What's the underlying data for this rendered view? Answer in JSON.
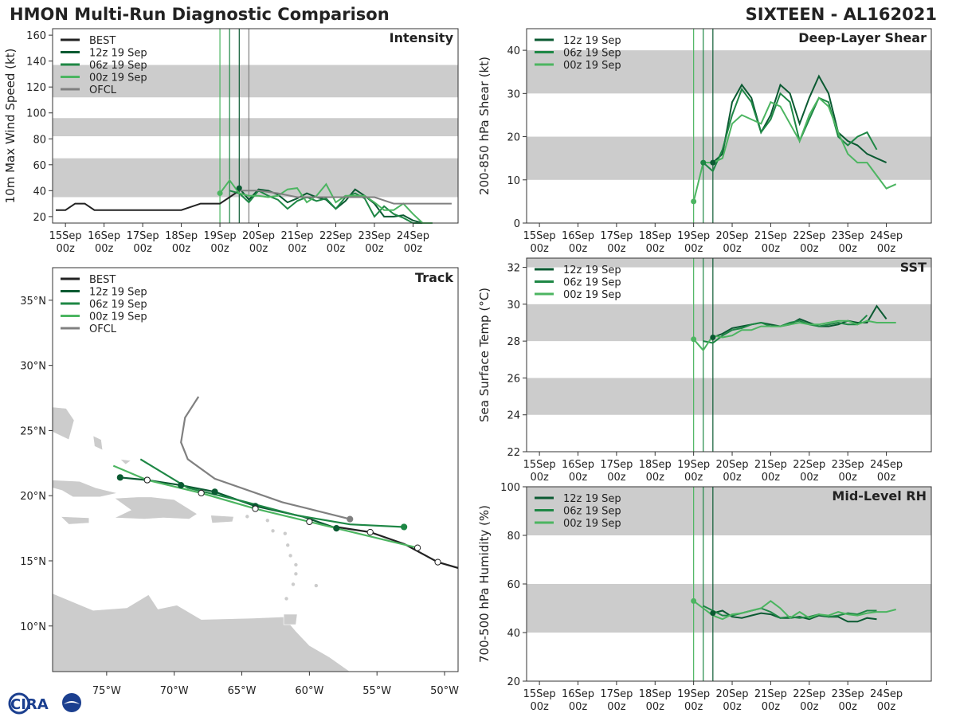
{
  "header": {
    "title": "HMON Multi-Run Diagnostic Comparison",
    "storm": "SIXTEEN - AL162021"
  },
  "colors": {
    "best": "#222222",
    "run12": "#0b5a32",
    "run06": "#1e8745",
    "run00": "#4cb561",
    "ofcl": "#808080",
    "band": "#cccccc",
    "land": "#cccccc"
  },
  "logo": {
    "text": "CIRA"
  },
  "time_axis": {
    "labels": [
      [
        "15Sep",
        "00z"
      ],
      [
        "16Sep",
        "00z"
      ],
      [
        "17Sep",
        "00z"
      ],
      [
        "18Sep",
        "00z"
      ],
      [
        "19Sep",
        "00z"
      ],
      [
        "20Sep",
        "00z"
      ],
      [
        "21Sep",
        "00z"
      ],
      [
        "22Sep",
        "00z"
      ],
      [
        "23Sep",
        "00z"
      ],
      [
        "24Sep",
        "00z"
      ]
    ],
    "init_lines_hours": {
      "run00": 96,
      "run06": 102,
      "run12": 108
    }
  },
  "chart_data": [
    {
      "id": "intensity",
      "type": "line",
      "title": "Intensity",
      "ylabel": "10m Max Wind Speed (kt)",
      "xlim_hours": [
        -8,
        244
      ],
      "ylim": [
        15,
        165
      ],
      "yticks": [
        20,
        40,
        60,
        80,
        100,
        120,
        140,
        160
      ],
      "bands": [
        [
          35,
          65
        ],
        [
          82,
          96
        ],
        [
          112,
          137
        ]
      ],
      "extra_vlines": [
        {
          "h": 114,
          "color": "ofcl"
        }
      ],
      "legend": [
        "BEST",
        "12z 19 Sep",
        "06z 19 Sep",
        "00z 19 Sep",
        "OFCL"
      ],
      "series": [
        {
          "name": "BEST",
          "color": "best",
          "x": [
            -6,
            0,
            6,
            12,
            18,
            24,
            48,
            72,
            84,
            90,
            96,
            102,
            108
          ],
          "y": [
            25,
            25,
            30,
            30,
            25,
            25,
            25,
            25,
            30,
            30,
            30,
            35,
            40
          ]
        },
        {
          "name": "12z 19 Sep",
          "color": "run12",
          "x": [
            108,
            114,
            120,
            126,
            132,
            138,
            144,
            150,
            156,
            162,
            168,
            174,
            180,
            186,
            192,
            198,
            204,
            210,
            216,
            222,
            228,
            234,
            240
          ],
          "y": [
            42,
            33,
            41,
            40,
            37,
            31,
            34,
            38,
            35,
            33,
            26,
            32,
            41,
            36,
            30,
            20,
            20,
            21,
            17,
            15,
            15,
            null,
            null
          ]
        },
        {
          "name": "06z 19 Sep",
          "color": "run06",
          "x": [
            102,
            108,
            114,
            120,
            126,
            132,
            138,
            144,
            150,
            156,
            162,
            168,
            174,
            180,
            186,
            192,
            198,
            204,
            210,
            216,
            222,
            228,
            234
          ],
          "y": [
            40,
            38,
            31,
            40,
            36,
            33,
            26,
            32,
            35,
            32,
            34,
            26,
            35,
            38,
            34,
            20,
            28,
            22,
            19,
            15,
            15,
            null,
            null
          ]
        },
        {
          "name": "00z 19 Sep",
          "color": "run00",
          "x": [
            96,
            102,
            108,
            114,
            120,
            126,
            132,
            138,
            144,
            150,
            156,
            162,
            168,
            174,
            180,
            186,
            192,
            198,
            204,
            210,
            216,
            222,
            228
          ],
          "y": [
            38,
            48,
            38,
            36,
            36,
            35,
            36,
            41,
            42,
            31,
            36,
            45,
            31,
            36,
            36,
            36,
            31,
            25,
            25,
            30,
            22,
            15,
            15
          ]
        },
        {
          "name": "OFCL",
          "color": "ofcl",
          "x": [
            108,
            120,
            132,
            144,
            156,
            168,
            180,
            192,
            204,
            216,
            228,
            240
          ],
          "y": [
            40,
            40,
            38,
            35,
            35,
            35,
            35,
            35,
            30,
            30,
            30,
            30
          ]
        }
      ],
      "markers": [
        {
          "x": 108,
          "y": 42,
          "color": "run12"
        },
        {
          "x": 96,
          "y": 38,
          "color": "run00"
        }
      ]
    },
    {
      "id": "shear",
      "type": "line",
      "title": "Deep-Layer Shear",
      "ylabel": "200-850 hPa Shear (kt)",
      "xlim_hours": [
        -8,
        244
      ],
      "ylim": [
        0,
        45
      ],
      "yticks": [
        0,
        10,
        20,
        30,
        40
      ],
      "bands": [
        [
          10,
          20
        ],
        [
          30,
          40
        ]
      ],
      "legend": [
        "12z 19 Sep",
        "06z 19 Sep",
        "00z 19 Sep"
      ],
      "series": [
        {
          "name": "12z 19 Sep",
          "color": "run12",
          "x": [
            108,
            114,
            120,
            126,
            132,
            138,
            144,
            150,
            156,
            162,
            168,
            174,
            180,
            186,
            192,
            198,
            204,
            210,
            216,
            222,
            228
          ],
          "y": [
            14,
            16,
            28,
            32,
            29,
            21,
            25,
            32,
            30,
            23,
            29,
            34,
            30,
            21,
            19,
            18,
            16,
            15,
            14,
            null,
            null
          ]
        },
        {
          "name": "06z 19 Sep",
          "color": "run06",
          "x": [
            102,
            108,
            114,
            120,
            126,
            132,
            138,
            144,
            150,
            156,
            162,
            168,
            174,
            180,
            186,
            192,
            198,
            204,
            210,
            216
          ],
          "y": [
            14,
            12,
            17,
            25,
            31,
            28,
            21,
            24,
            30,
            28,
            19,
            24,
            29,
            28,
            20,
            18,
            20,
            21,
            17,
            null
          ]
        },
        {
          "name": "00z 19 Sep",
          "color": "run00",
          "x": [
            96,
            102,
            108,
            114,
            120,
            126,
            132,
            138,
            144,
            150,
            156,
            162,
            168,
            174,
            180,
            186,
            192,
            198,
            204,
            210,
            216,
            222,
            228
          ],
          "y": [
            5,
            14,
            14,
            15,
            23,
            25,
            24,
            23,
            28,
            27,
            23,
            19,
            25,
            29,
            27,
            21,
            16,
            14,
            14,
            11,
            8,
            9,
            null
          ]
        }
      ],
      "markers": [
        {
          "x": 108,
          "y": 14,
          "color": "run12"
        },
        {
          "x": 102,
          "y": 14,
          "color": "run06"
        },
        {
          "x": 96,
          "y": 5,
          "color": "run00"
        }
      ]
    },
    {
      "id": "sst",
      "type": "line",
      "title": "SST",
      "ylabel": "Sea Surface Temp (°C)",
      "xlim_hours": [
        -8,
        244
      ],
      "ylim": [
        22,
        32.5
      ],
      "yticks": [
        22,
        24,
        26,
        28,
        30,
        32
      ],
      "bands": [
        [
          24,
          26
        ],
        [
          28,
          30
        ],
        [
          32,
          32.5
        ]
      ],
      "legend": [
        "12z 19 Sep",
        "06z 19 Sep",
        "00z 19 Sep"
      ],
      "series": [
        {
          "name": "12z 19 Sep",
          "color": "run12",
          "x": [
            108,
            114,
            120,
            126,
            132,
            138,
            144,
            150,
            156,
            162,
            168,
            174,
            180,
            186,
            192,
            198,
            204,
            210,
            216,
            222
          ],
          "y": [
            28.2,
            28.4,
            28.7,
            28.8,
            28.9,
            29.0,
            28.9,
            28.8,
            28.9,
            29.2,
            29.0,
            28.8,
            28.8,
            28.9,
            29.1,
            29.0,
            29.0,
            29.9,
            29.2,
            null
          ]
        },
        {
          "name": "06z 19 Sep",
          "color": "run06",
          "x": [
            102,
            108,
            114,
            120,
            126,
            132,
            138,
            144,
            150,
            156,
            162,
            168,
            174,
            180,
            186,
            192,
            198,
            204,
            210
          ],
          "y": [
            28.0,
            27.9,
            28.3,
            28.6,
            28.7,
            28.9,
            29.0,
            28.8,
            28.8,
            29.0,
            29.1,
            28.9,
            28.8,
            28.9,
            29.0,
            28.9,
            28.9,
            29.4,
            null
          ]
        },
        {
          "name": "00z 19 Sep",
          "color": "run00",
          "x": [
            96,
            102,
            108,
            114,
            120,
            126,
            132,
            138,
            144,
            150,
            156,
            162,
            168,
            174,
            180,
            186,
            192,
            198,
            204,
            210,
            216,
            222
          ],
          "y": [
            28.1,
            27.5,
            28.3,
            28.2,
            28.3,
            28.6,
            28.6,
            28.8,
            28.8,
            28.8,
            28.9,
            29.0,
            28.9,
            28.9,
            29.0,
            29.1,
            29.1,
            28.9,
            29.1,
            29.0,
            29.0,
            29.0
          ]
        }
      ],
      "markers": [
        {
          "x": 108,
          "y": 28.2,
          "color": "run12"
        },
        {
          "x": 96,
          "y": 28.1,
          "color": "run00"
        }
      ]
    },
    {
      "id": "rh",
      "type": "line",
      "title": "Mid-Level RH",
      "ylabel": "700-500 hPa Humidity (%)",
      "xlim_hours": [
        -8,
        244
      ],
      "ylim": [
        20,
        100
      ],
      "yticks": [
        20,
        40,
        60,
        80,
        100
      ],
      "bands": [
        [
          40,
          60
        ],
        [
          80,
          100
        ]
      ],
      "legend": [
        "12z 19 Sep",
        "06z 19 Sep",
        "00z 19 Sep"
      ],
      "series": [
        {
          "name": "12z 19 Sep",
          "color": "run12",
          "x": [
            108,
            114,
            120,
            126,
            132,
            138,
            144,
            150,
            156,
            162,
            168,
            174,
            180,
            186,
            192,
            198,
            204,
            210,
            216
          ],
          "y": [
            48,
            49,
            46.5,
            46,
            47,
            48,
            47.5,
            46,
            46,
            46.5,
            45.5,
            47,
            46.5,
            46.5,
            44.5,
            44.5,
            46,
            45.5,
            null
          ]
        },
        {
          "name": "06z 19 Sep",
          "color": "run06",
          "x": [
            102,
            108,
            114,
            120,
            126,
            132,
            138,
            144,
            150,
            156,
            162,
            168,
            174,
            180,
            186,
            192,
            198,
            204,
            210,
            216
          ],
          "y": [
            51,
            49,
            47,
            47,
            48,
            49,
            50,
            48.5,
            46,
            46.5,
            46,
            46.5,
            47.5,
            46.5,
            47,
            48,
            47.5,
            49,
            49,
            null
          ]
        },
        {
          "name": "00z 19 Sep",
          "color": "run00",
          "x": [
            96,
            102,
            108,
            114,
            120,
            126,
            132,
            138,
            144,
            150,
            156,
            162,
            168,
            174,
            180,
            186,
            192,
            198,
            204,
            210,
            216,
            222
          ],
          "y": [
            53,
            50,
            47,
            45.5,
            47.5,
            48,
            49,
            50,
            53,
            50,
            46,
            48.5,
            46,
            47.5,
            47,
            48.5,
            47.5,
            47,
            48,
            48.5,
            48.5,
            49.5
          ]
        }
      ],
      "markers": [
        {
          "x": 108,
          "y": 48,
          "color": "run12"
        },
        {
          "x": 96,
          "y": 53,
          "color": "run00"
        }
      ]
    },
    {
      "id": "track",
      "type": "scatter",
      "title": "Track",
      "xlim_lon": [
        -79,
        -49
      ],
      "ylim_lat": [
        6.5,
        37.5
      ],
      "xticks": [
        -75,
        -70,
        -65,
        -60,
        -55,
        -50
      ],
      "xtick_labels": [
        "75°W",
        "70°W",
        "65°W",
        "60°W",
        "55°W",
        "50°W"
      ],
      "yticks": [
        10,
        15,
        20,
        25,
        30,
        35
      ],
      "ytick_labels": [
        "10°N",
        "15°N",
        "20°N",
        "25°N",
        "30°N",
        "35°N"
      ],
      "legend": [
        "BEST",
        "12z 19 Sep",
        "06z 19 Sep",
        "00z 19 Sep",
        "OFCL"
      ],
      "series": [
        {
          "name": "BEST",
          "color": "best",
          "lon": [
            -48.5,
            -50.5,
            -53,
            -55.5,
            -58
          ],
          "lat": [
            14.3,
            14.9,
            16.3,
            17.2,
            17.6
          ],
          "marker_style": "open",
          "marker_idx": [
            1,
            3
          ]
        },
        {
          "name": "12z 19 Sep",
          "color": "run12",
          "lon": [
            -58,
            -60.5,
            -64,
            -67,
            -69.5,
            -72,
            -74
          ],
          "lat": [
            17.5,
            18.4,
            19.2,
            20.3,
            20.8,
            21.2,
            21.4
          ],
          "marker_style": "filled",
          "marker_idx": [
            0,
            2,
            3,
            4,
            5,
            6
          ]
        },
        {
          "name": "06z 19 Sep",
          "color": "run06",
          "lon": [
            -53,
            -57,
            -61,
            -65,
            -69,
            -72.5
          ],
          "lat": [
            17.6,
            17.8,
            18.5,
            19.6,
            20.6,
            22.8
          ],
          "marker_style": "filled",
          "marker_idx": [
            0
          ]
        },
        {
          "name": "00z 19 Sep",
          "color": "run00",
          "lon": [
            -52,
            -56,
            -60,
            -64,
            -68,
            -72,
            -74.5
          ],
          "lat": [
            16.0,
            17.0,
            18.0,
            19.0,
            20.2,
            21.2,
            22.3
          ],
          "marker_style": "open",
          "marker_idx": [
            0,
            2,
            3,
            4,
            5
          ]
        },
        {
          "name": "OFCL",
          "color": "ofcl",
          "lon": [
            -57,
            -62,
            -67,
            -69,
            -69.5,
            -69.2,
            -68.2
          ],
          "lat": [
            18.2,
            19.5,
            21.3,
            22.8,
            24.1,
            26.0,
            27.6
          ],
          "marker_style": "filled",
          "marker_idx": [
            0
          ]
        }
      ]
    }
  ]
}
